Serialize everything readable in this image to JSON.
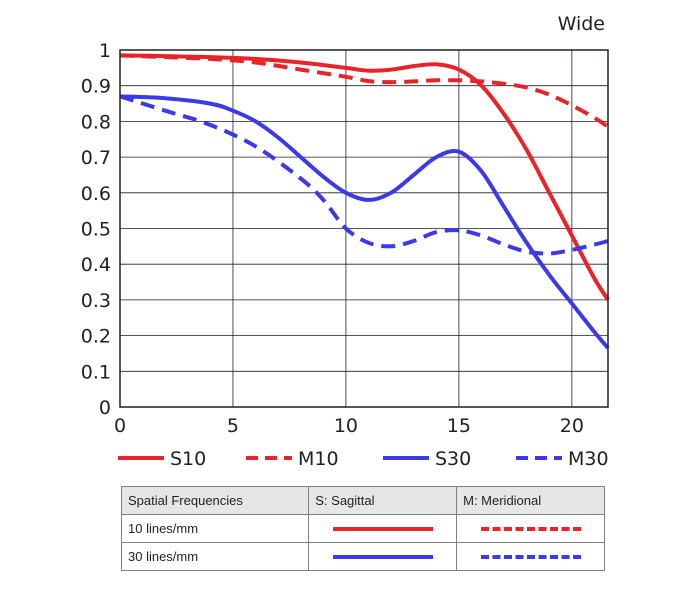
{
  "chart_data": {
    "type": "line",
    "corner_label": "Wide",
    "xlim": [
      0,
      21.6
    ],
    "ylim": [
      0,
      1
    ],
    "x_ticks": [
      0,
      5,
      10,
      15,
      20
    ],
    "y_ticks": [
      0,
      0.1,
      0.2,
      0.3,
      0.4,
      0.5,
      0.6,
      0.7,
      0.8,
      0.9,
      1
    ],
    "grid": true,
    "series": [
      {
        "name": "S10",
        "color": "#e8232a",
        "dash": false,
        "x": [
          0,
          2,
          4,
          6,
          8,
          10,
          11,
          12,
          13,
          14,
          15,
          16,
          17,
          18,
          19,
          20,
          21,
          21.6
        ],
        "y": [
          0.985,
          0.983,
          0.98,
          0.975,
          0.965,
          0.95,
          0.942,
          0.945,
          0.955,
          0.96,
          0.945,
          0.9,
          0.82,
          0.72,
          0.6,
          0.48,
          0.36,
          0.3
        ]
      },
      {
        "name": "M10",
        "color": "#e8232a",
        "dash": true,
        "x": [
          0,
          2,
          4,
          6,
          8,
          10,
          11,
          12,
          13,
          14,
          15,
          16,
          17,
          18,
          19,
          20,
          21,
          21.6
        ],
        "y": [
          0.985,
          0.98,
          0.975,
          0.965,
          0.945,
          0.925,
          0.913,
          0.91,
          0.912,
          0.915,
          0.915,
          0.912,
          0.905,
          0.895,
          0.875,
          0.845,
          0.81,
          0.785
        ]
      },
      {
        "name": "S30",
        "color": "#3a3ae8",
        "dash": false,
        "x": [
          0,
          2,
          4,
          5,
          6,
          7,
          8,
          9,
          10,
          11,
          12,
          13,
          14,
          15,
          16,
          17,
          18,
          19,
          20,
          21,
          21.6
        ],
        "y": [
          0.87,
          0.865,
          0.85,
          0.83,
          0.8,
          0.755,
          0.7,
          0.645,
          0.6,
          0.58,
          0.6,
          0.65,
          0.7,
          0.715,
          0.66,
          0.56,
          0.46,
          0.37,
          0.29,
          0.21,
          0.165
        ]
      },
      {
        "name": "M30",
        "color": "#3a3ae8",
        "dash": true,
        "x": [
          0,
          2,
          4,
          6,
          8,
          9,
          10,
          11,
          12,
          13,
          14,
          15,
          16,
          17,
          18,
          19,
          20,
          21,
          21.6
        ],
        "y": [
          0.87,
          0.83,
          0.79,
          0.73,
          0.64,
          0.58,
          0.5,
          0.46,
          0.45,
          0.465,
          0.49,
          0.495,
          0.48,
          0.455,
          0.435,
          0.43,
          0.44,
          0.455,
          0.465
        ]
      }
    ]
  },
  "table": {
    "headers": [
      "Spatial Frequencies",
      "S: Sagittal",
      "M: Meridional"
    ],
    "rows": [
      {
        "label": "10 lines/mm",
        "color": "#e8232a"
      },
      {
        "label": "30 lines/mm",
        "color": "#3a3ae8"
      }
    ]
  }
}
